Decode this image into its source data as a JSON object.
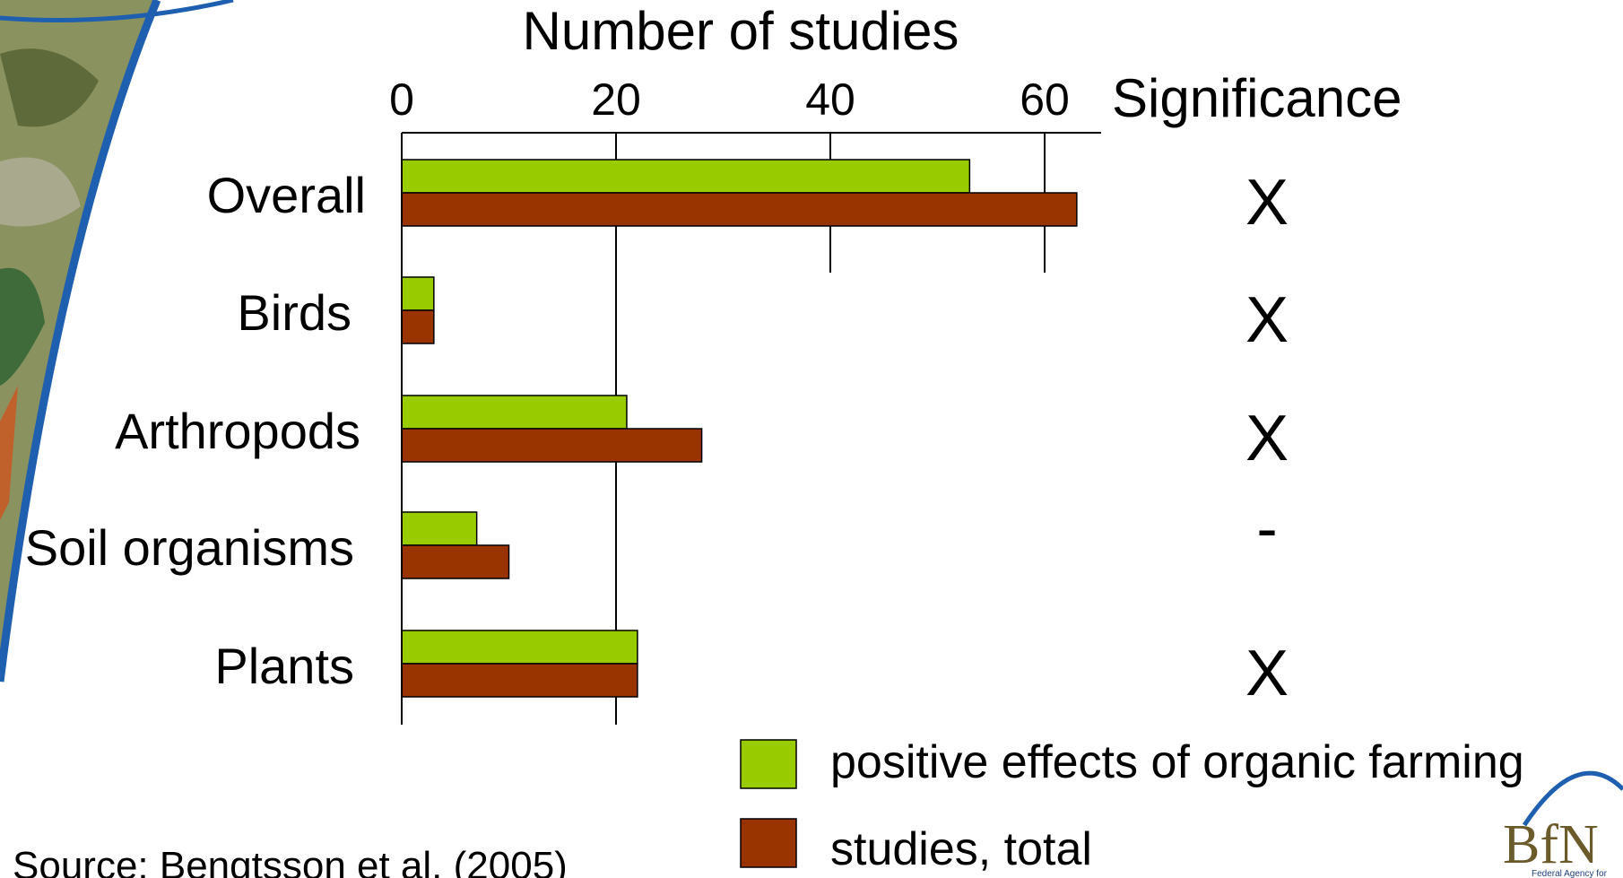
{
  "chart_data": {
    "type": "bar",
    "orientation": "horizontal",
    "title": "Number of studies",
    "categories": [
      "Overall",
      "Birds",
      "Arthropods",
      "Soil organisms",
      "Plants"
    ],
    "series": [
      {
        "name": "positive effects of organic farming",
        "color": "#99cc00",
        "values": [
          53,
          3,
          21,
          7,
          22
        ]
      },
      {
        "name": "studies, total",
        "color": "#993300",
        "values": [
          63,
          3,
          28,
          10,
          22
        ]
      }
    ],
    "xticks": [
      0,
      20,
      40,
      60
    ],
    "xlim": [
      0,
      65
    ],
    "grid": "vertical",
    "legend_position": "bottom-right",
    "significance": {
      "header": "Significance",
      "marks": [
        "X",
        "X",
        "X",
        "-",
        "X"
      ]
    }
  },
  "source": "Source: Bengtsson et al. (2005)",
  "logo": {
    "text": "BfN",
    "caption": "Federal Agency for"
  }
}
